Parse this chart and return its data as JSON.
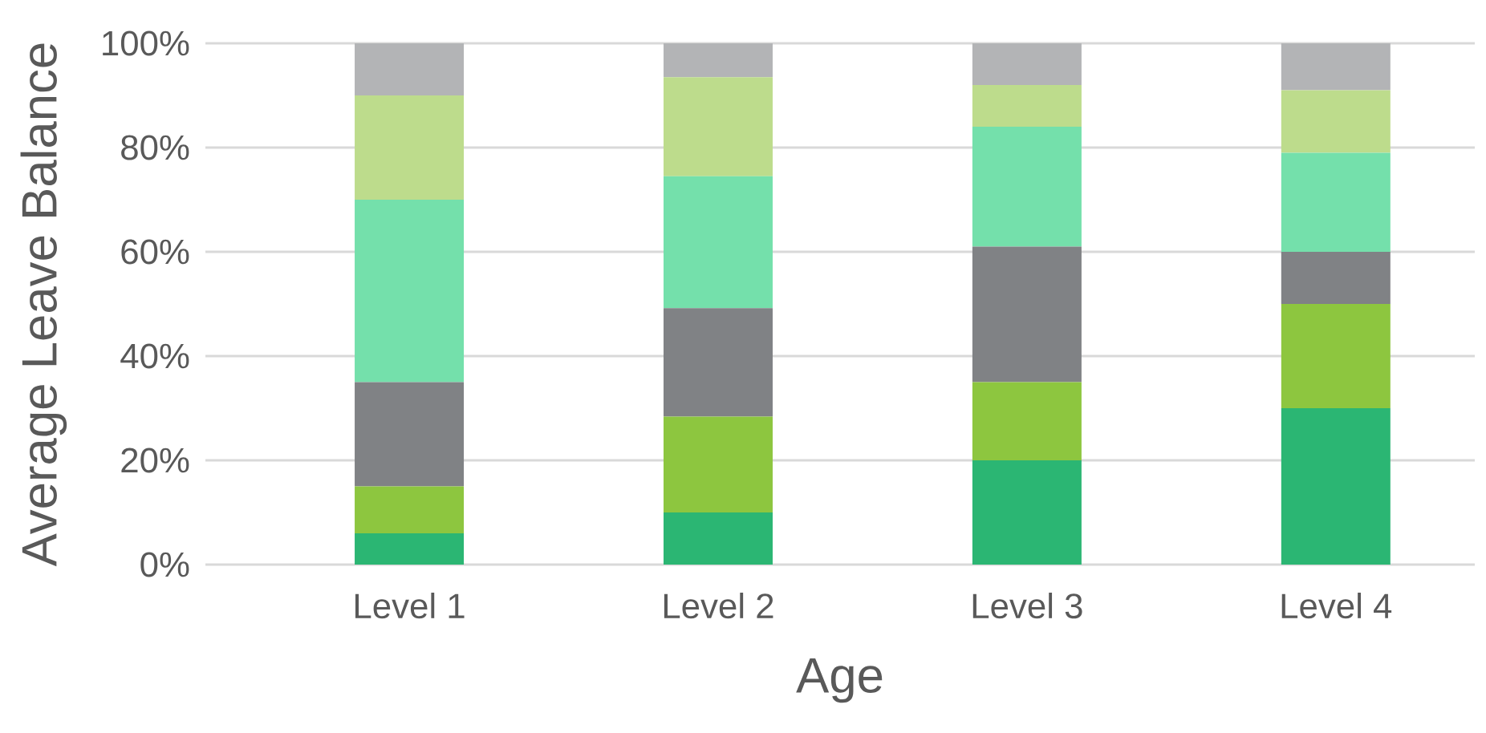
{
  "chart_data": {
    "type": "bar",
    "stacked": true,
    "xlabel": "Age",
    "ylabel": "Average Leave Balance",
    "categories": [
      "Level 1",
      "Level 2",
      "Level 3",
      "Level 4"
    ],
    "series": [
      {
        "color": "#2bb673",
        "values": [
          6,
          10,
          20,
          30
        ]
      },
      {
        "color": "#8dc63f",
        "values": [
          9,
          18.4,
          15,
          20
        ]
      },
      {
        "color": "#808285",
        "values": [
          20,
          20.8,
          26,
          10
        ]
      },
      {
        "color": "#74e0ab",
        "values": [
          35,
          25.3,
          23,
          19
        ]
      },
      {
        "color": "#bddc8c",
        "values": [
          20,
          19,
          8,
          12
        ]
      },
      {
        "color": "#b3b4b6",
        "values": [
          10,
          6.5,
          8,
          9
        ]
      }
    ],
    "ylim": [
      0,
      100
    ],
    "yticks": [
      {
        "value": 0,
        "label": "0%"
      },
      {
        "value": 20,
        "label": "20%"
      },
      {
        "value": 40,
        "label": "40%"
      },
      {
        "value": 60,
        "label": "60%"
      },
      {
        "value": 80,
        "label": "80%"
      },
      {
        "value": 100,
        "label": "100%"
      }
    ],
    "grid": "y"
  }
}
